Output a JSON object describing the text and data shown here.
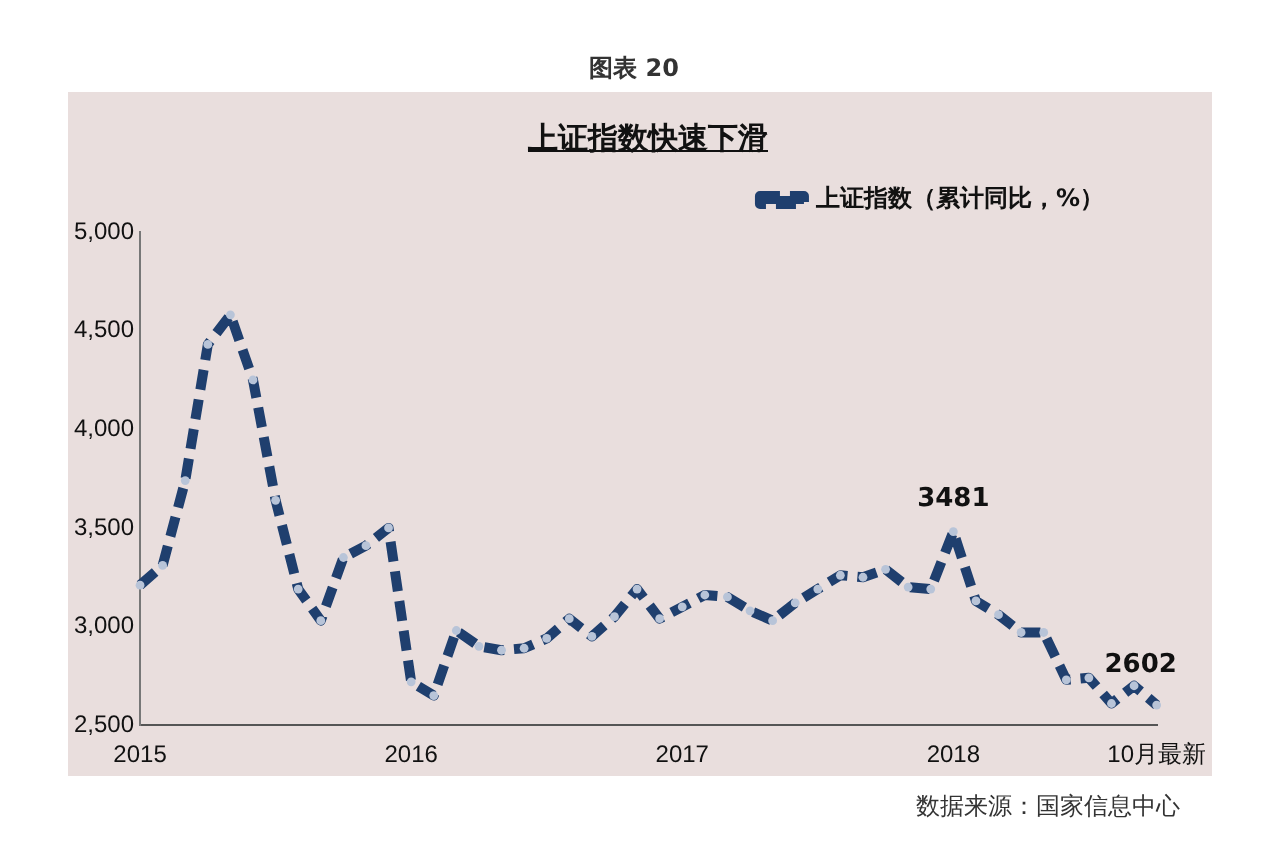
{
  "chart_data": {
    "type": "line",
    "title": "图表 20",
    "subtitle": "上证指数快速下滑",
    "categories": [
      "2015",
      null,
      null,
      null,
      null,
      null,
      null,
      null,
      null,
      null,
      null,
      null,
      "2016",
      null,
      null,
      null,
      null,
      null,
      null,
      null,
      null,
      null,
      null,
      null,
      "2017",
      null,
      null,
      null,
      null,
      null,
      null,
      null,
      null,
      null,
      null,
      null,
      "2018",
      null,
      null,
      null,
      null,
      null,
      null,
      null,
      null,
      "10月最新"
    ],
    "series": [
      {
        "name": "上证指数（累计同比，%）",
        "color": "#1f3f6e",
        "values": [
          3210,
          3310,
          3740,
          4430,
          4580,
          4250,
          3640,
          3190,
          3030,
          3350,
          3410,
          3500,
          2720,
          2650,
          2980,
          2900,
          2880,
          2890,
          2940,
          3040,
          2950,
          3050,
          3190,
          3040,
          3100,
          3160,
          3150,
          3080,
          3030,
          3120,
          3190,
          3260,
          3250,
          3290,
          3200,
          3190,
          3481,
          3130,
          3060,
          2970,
          2970,
          2730,
          2740,
          2610,
          2700,
          2602
        ],
        "value_labels": [
          null,
          null,
          null,
          null,
          null,
          null,
          null,
          null,
          null,
          null,
          null,
          null,
          null,
          null,
          null,
          null,
          null,
          null,
          null,
          null,
          null,
          null,
          null,
          null,
          null,
          null,
          null,
          null,
          null,
          null,
          null,
          null,
          null,
          null,
          null,
          null,
          "3481",
          null,
          null,
          null,
          null,
          null,
          null,
          null,
          null,
          "2602"
        ]
      }
    ],
    "ylim": [
      2500,
      5000
    ],
    "yticks": [
      {
        "value": 2500,
        "label": "2,500"
      },
      {
        "value": 3000,
        "label": "3,000"
      },
      {
        "value": 3500,
        "label": "3,500"
      },
      {
        "value": 4000,
        "label": "4,000"
      },
      {
        "value": 4500,
        "label": "4,500"
      },
      {
        "value": 5000,
        "label": "5,000"
      }
    ],
    "grid": false,
    "legend": "top right",
    "marker": "circle",
    "line_style": "dashed",
    "annotations": [
      "数据来源：国家信息中心"
    ]
  }
}
